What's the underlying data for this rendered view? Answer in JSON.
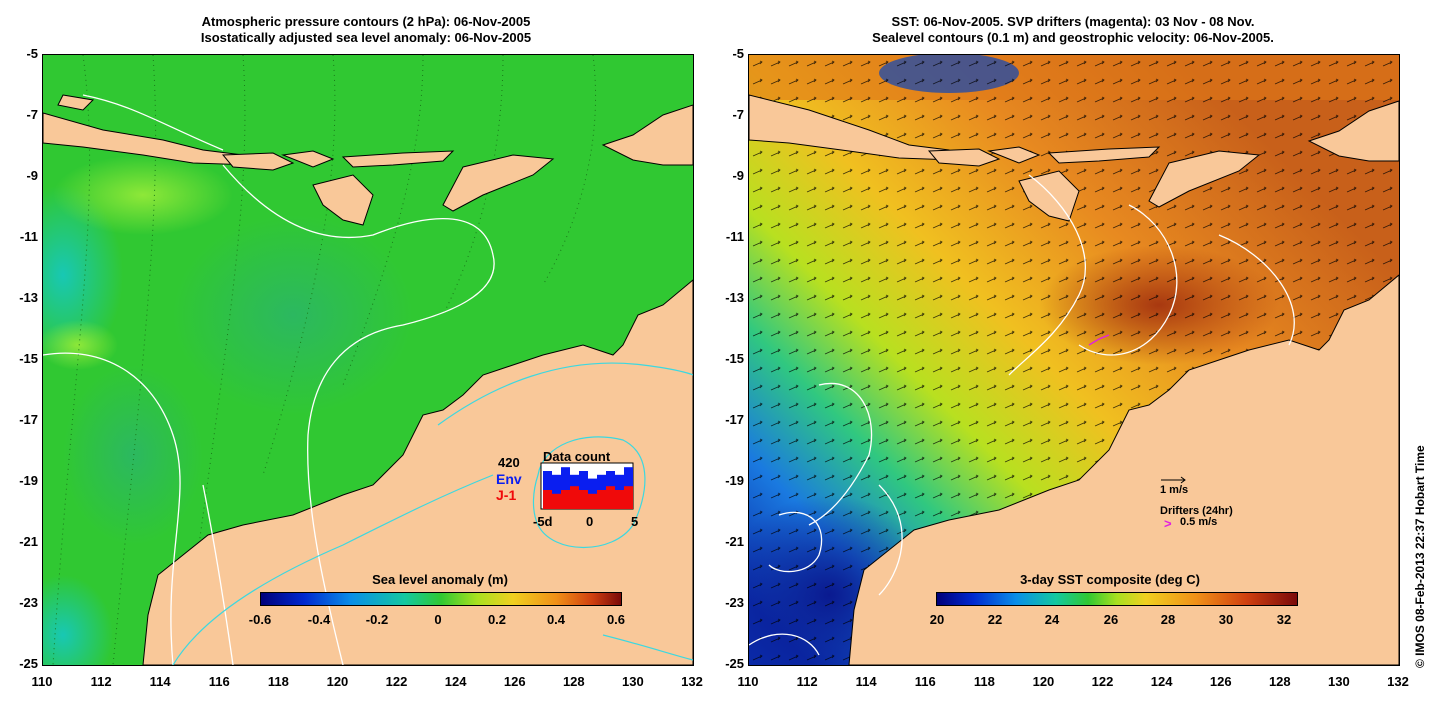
{
  "left_panel": {
    "title_line1": "Atmospheric pressure contours (2 hPa): 06-Nov-2005",
    "title_line2": "Isostatically adjusted sea level anomaly: 06-Nov-2005",
    "colorbar": {
      "title": "Sea level anomaly (m)",
      "tick_labels": [
        "-0.6",
        "-0.4",
        "-0.2",
        "0",
        "0.2",
        "0.4",
        "0.6"
      ]
    },
    "data_count": {
      "title": "Data count",
      "total": "420",
      "env_label": "Env",
      "j1_label": "J-1",
      "x_labels": [
        "-5d",
        "0",
        "5"
      ],
      "env_values": [
        10,
        9,
        11,
        9,
        10,
        8,
        9,
        10,
        9,
        11
      ],
      "j1_values": [
        5,
        4,
        5,
        6,
        5,
        4,
        5,
        6,
        5,
        6
      ]
    }
  },
  "right_panel": {
    "title_line1": "SST: 06-Nov-2005. SVP drifters (magenta): 03 Nov - 08 Nov.",
    "title_line2": "Sealevel contours (0.1 m) and geostrophic velocity: 06-Nov-2005.",
    "colorbar": {
      "title": "3-day SST composite (deg C)",
      "tick_labels": [
        "20",
        "22",
        "24",
        "26",
        "28",
        "30",
        "32"
      ]
    },
    "velocity_legend": "1 m/s",
    "drifter_legend_title": "Drifters (24hr)",
    "drifter_legend_symbol": ">",
    "drifter_legend_value": "0.5 m/s"
  },
  "axes": {
    "y_labels": [
      "-5",
      "-7",
      "-9",
      "-11",
      "-13",
      "-15",
      "-17",
      "-19",
      "-21",
      "-23",
      "-25"
    ],
    "x_labels": [
      "110",
      "112",
      "114",
      "116",
      "118",
      "120",
      "122",
      "124",
      "126",
      "128",
      "130",
      "132"
    ]
  },
  "credit": "© IMOS 08-Feb-2013 22:37 Hobart Time",
  "colors": {
    "land": "#f9c899",
    "ocean_sla": "#2ec832",
    "sst_warm": "#e8901e",
    "sst_cool": "#1e6fd6",
    "contour_white": "#ffffff",
    "contour_cyan": "#3cd8e0",
    "env_bar": "#0a1ef0",
    "j1_bar": "#f00a0a",
    "drifter": "#e020e0"
  }
}
